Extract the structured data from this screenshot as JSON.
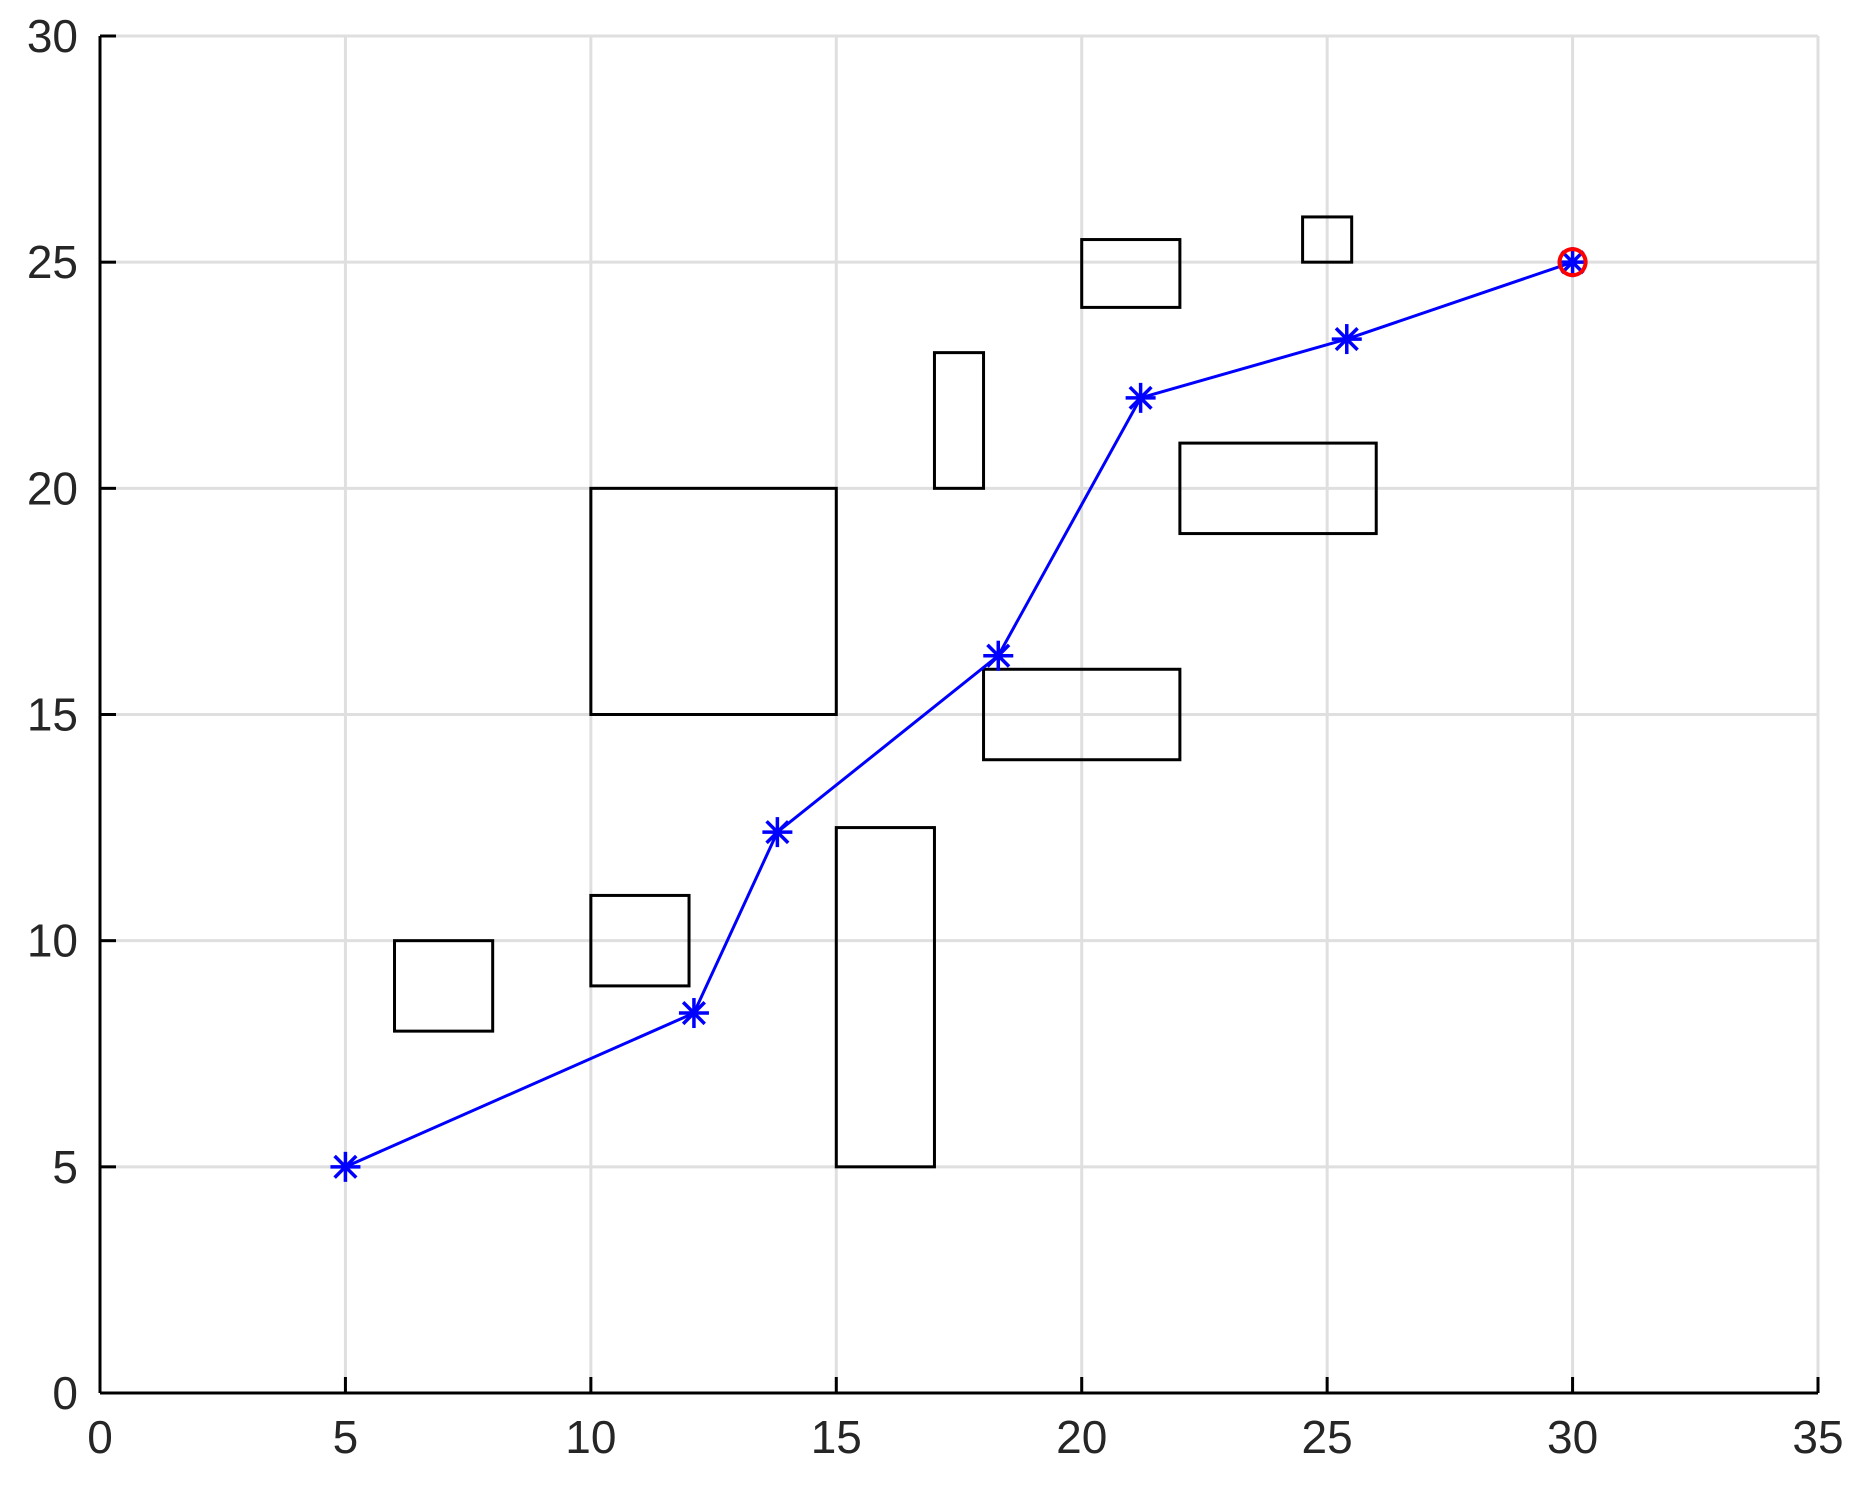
{
  "chart_data": {
    "type": "line",
    "title": "",
    "xlabel": "",
    "ylabel": "",
    "xlim": [
      0,
      35
    ],
    "ylim": [
      0,
      30
    ],
    "xticks": [
      0,
      5,
      10,
      15,
      20,
      25,
      30,
      35
    ],
    "yticks": [
      0,
      5,
      10,
      15,
      20,
      25,
      30
    ],
    "xtick_labels": [
      "0",
      "5",
      "10",
      "15",
      "20",
      "25",
      "30",
      "35"
    ],
    "ytick_labels": [
      "0",
      "5",
      "10",
      "15",
      "20",
      "25",
      "30"
    ],
    "grid": true,
    "legend": "none",
    "series": [
      {
        "marker": "asterisk",
        "color": "#0000ff",
        "x": [
          5,
          12.1,
          13.8,
          18.3,
          21.2,
          25.4,
          30
        ],
        "y": [
          5,
          8.4,
          12.4,
          16.3,
          22.0,
          23.3,
          25
        ]
      }
    ],
    "goal_point": {
      "x": 30,
      "y": 25,
      "marker": "circle",
      "color": "#ff0000"
    },
    "obstacles": [
      {
        "x": 6,
        "y": 8,
        "w": 2,
        "h": 2
      },
      {
        "x": 10,
        "y": 9,
        "w": 2,
        "h": 2
      },
      {
        "x": 10,
        "y": 15,
        "w": 5,
        "h": 5
      },
      {
        "x": 15,
        "y": 5,
        "w": 2,
        "h": 7.5
      },
      {
        "x": 17,
        "y": 20,
        "w": 1,
        "h": 3
      },
      {
        "x": 18,
        "y": 14,
        "w": 4,
        "h": 2
      },
      {
        "x": 20,
        "y": 24,
        "w": 2,
        "h": 1.5
      },
      {
        "x": 22,
        "y": 19,
        "w": 4,
        "h": 2
      },
      {
        "x": 24.5,
        "y": 25,
        "w": 1,
        "h": 1
      }
    ],
    "colors": {
      "grid": "#dfdfdf",
      "axis": "#000000",
      "obstacle": "#000000"
    }
  }
}
